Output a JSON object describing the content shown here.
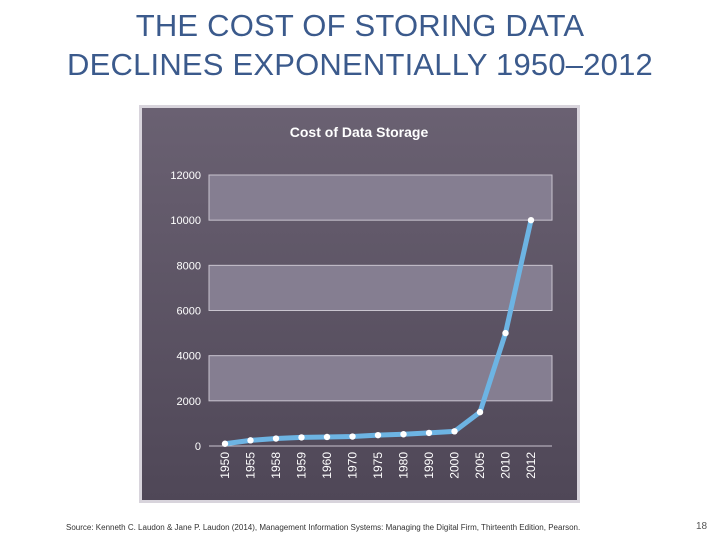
{
  "slide": {
    "title_line1": "THE COST OF STORING DATA",
    "title_line2": "DECLINES EXPONENTIALLY 1950–2012",
    "source": "Source: Kenneth C. Laudon & Jane P. Laudon (2014), Management Information Systems: Managing the Digital Firm, Thirteenth Edition, Pearson.",
    "page_number": "18"
  },
  "colors": {
    "title": "#3b5a8c",
    "panel_background": "#5e5566",
    "band_fill": "#857e91",
    "line": "#6db4e3",
    "marker": "#ffffff"
  },
  "chart_data": {
    "type": "line",
    "title": "Cost of Data Storage",
    "xlabel": "",
    "ylabel": "",
    "categories": [
      "1950",
      "1955",
      "1958",
      "1959",
      "1960",
      "1970",
      "1975",
      "1980",
      "1990",
      "2000",
      "2005",
      "2010",
      "2012"
    ],
    "series": [
      {
        "values": [
          100,
          250,
          330,
          380,
          400,
          420,
          480,
          520,
          580,
          650,
          1500,
          5000,
          10000
        ]
      }
    ],
    "ylim": [
      0,
      12000
    ],
    "yticks": [
      "0",
      "2000",
      "4000",
      "6000",
      "8000",
      "10000",
      "12000"
    ],
    "grid": "alternating horizontal bands",
    "legend": "none",
    "markers": true
  }
}
